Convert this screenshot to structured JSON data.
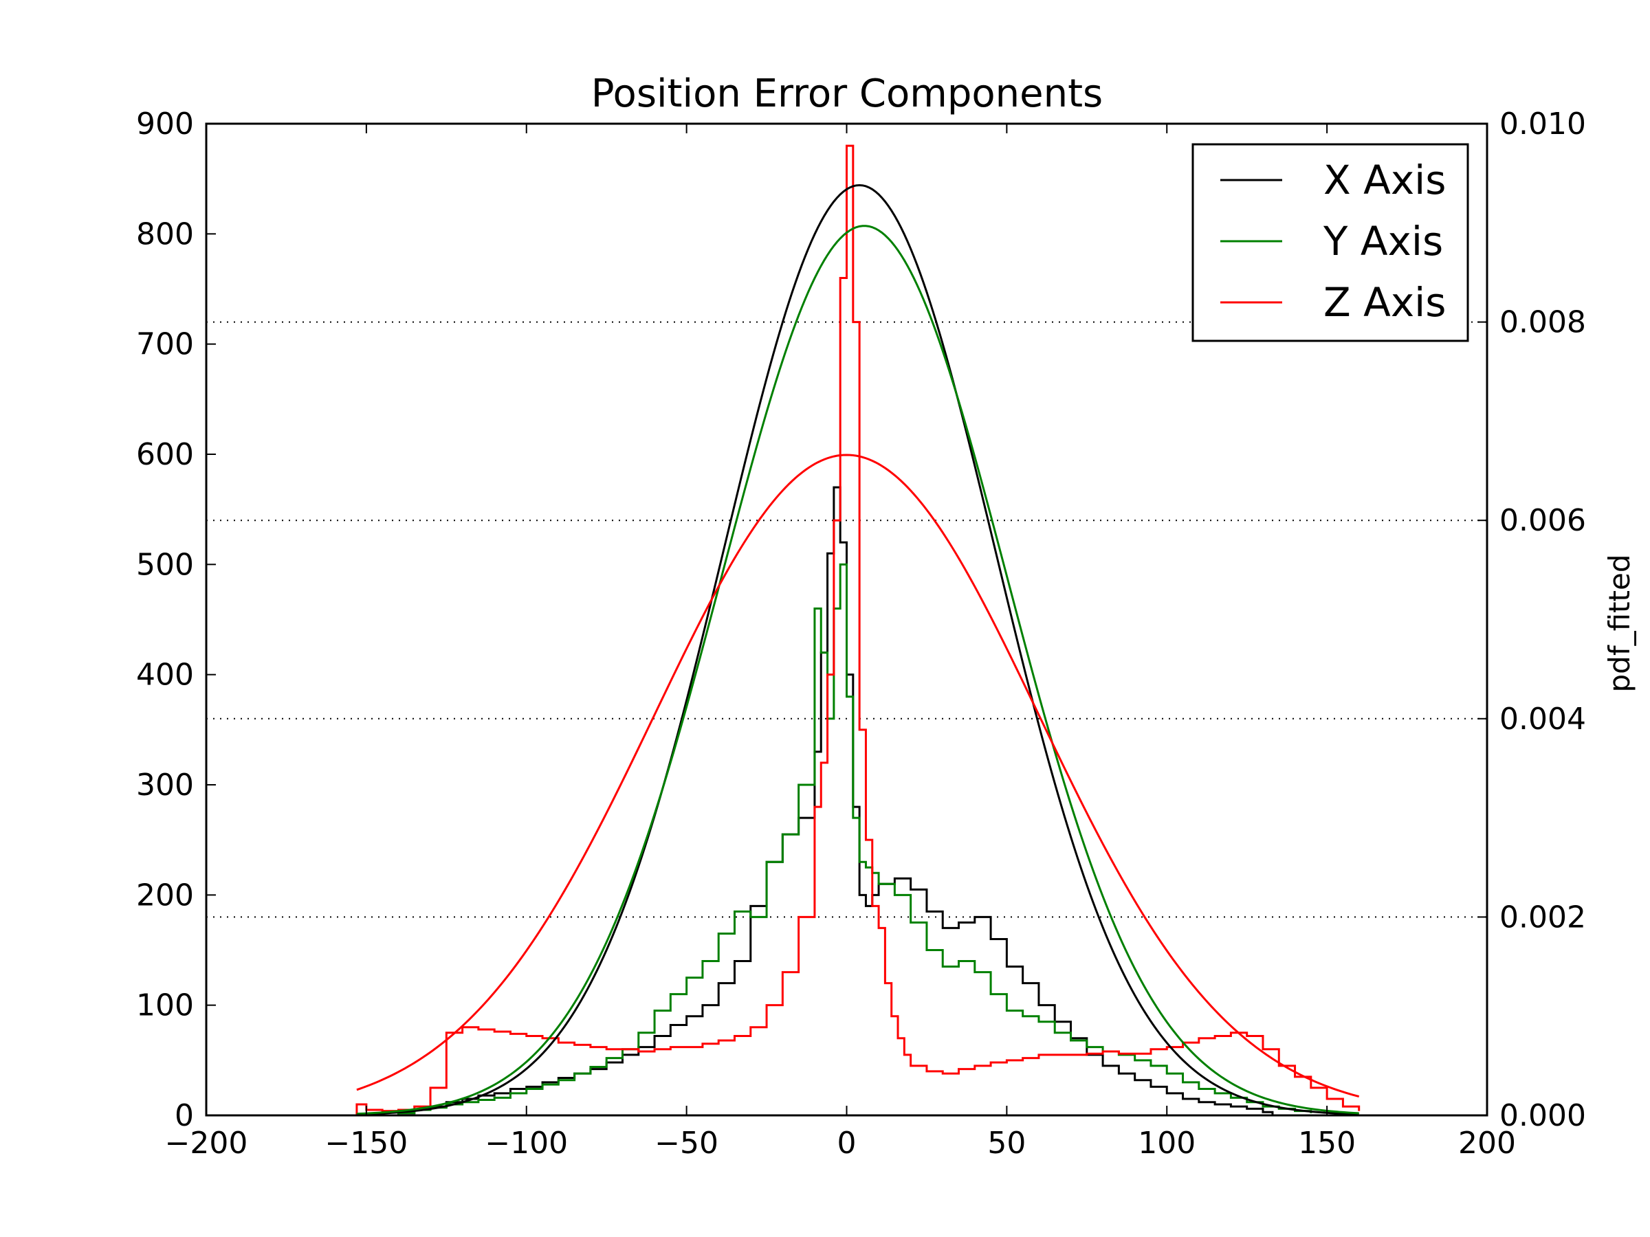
{
  "chart_data": {
    "type": "line",
    "title": "Position Error Components",
    "xlabel": "",
    "ylabel": "",
    "y2label": "pdf_fitted",
    "xlim": [
      -200,
      200
    ],
    "ylim": [
      0,
      900
    ],
    "y2lim": [
      0,
      0.01
    ],
    "x_ticks": [
      "−200",
      "−150",
      "−100",
      "−50",
      "0",
      "50",
      "100",
      "150",
      "200"
    ],
    "y_ticks": [
      "0",
      "100",
      "200",
      "300",
      "400",
      "500",
      "600",
      "700",
      "800",
      "900"
    ],
    "y2_ticks": [
      "0.000",
      "0.002",
      "0.004",
      "0.006",
      "0.008",
      "0.010"
    ],
    "grid": "dotted horizontal lines at right-axis ticks",
    "legend": {
      "placement": "top-right",
      "entries": [
        {
          "label": "X Axis",
          "color": "#000000"
        },
        {
          "label": "Y Axis",
          "color": "#008000"
        },
        {
          "label": "Z Axis",
          "color": "#ff0000"
        }
      ]
    },
    "histograms": [
      {
        "name": "X Axis",
        "color": "#000000",
        "x": [
          -140,
          -135,
          -130,
          -125,
          -120,
          -115,
          -110,
          -105,
          -100,
          -95,
          -90,
          -85,
          -80,
          -75,
          -70,
          -65,
          -60,
          -55,
          -50,
          -45,
          -40,
          -35,
          -30,
          -25,
          -20,
          -15,
          -10,
          -8,
          -6,
          -4,
          -2,
          0,
          2,
          4,
          6,
          8,
          10,
          15,
          20,
          25,
          30,
          35,
          40,
          45,
          50,
          55,
          60,
          65,
          70,
          75,
          80,
          85,
          90,
          95,
          100,
          105,
          110,
          115,
          120,
          125,
          130,
          133
        ],
        "y": [
          2,
          5,
          8,
          12,
          15,
          18,
          20,
          24,
          26,
          30,
          34,
          38,
          42,
          48,
          55,
          62,
          72,
          82,
          90,
          100,
          120,
          140,
          190,
          230,
          255,
          270,
          330,
          420,
          510,
          570,
          520,
          400,
          280,
          200,
          190,
          200,
          210,
          215,
          205,
          185,
          170,
          175,
          180,
          160,
          135,
          120,
          100,
          85,
          70,
          55,
          45,
          38,
          32,
          26,
          20,
          15,
          12,
          10,
          8,
          6,
          3,
          0
        ]
      },
      {
        "name": "Y Axis",
        "color": "#008000",
        "x": [
          -140,
          -135,
          -130,
          -125,
          -120,
          -115,
          -110,
          -105,
          -100,
          -95,
          -90,
          -85,
          -80,
          -75,
          -70,
          -65,
          -60,
          -55,
          -50,
          -45,
          -40,
          -35,
          -30,
          -25,
          -20,
          -15,
          -10,
          -8,
          -6,
          -4,
          -2,
          0,
          2,
          4,
          6,
          8,
          10,
          15,
          20,
          25,
          30,
          35,
          40,
          45,
          50,
          55,
          60,
          65,
          70,
          75,
          80,
          85,
          90,
          95,
          100,
          105,
          110,
          115,
          120,
          125,
          130,
          135,
          140,
          145
        ],
        "y": [
          2,
          5,
          7,
          10,
          12,
          14,
          16,
          20,
          24,
          28,
          32,
          38,
          44,
          52,
          60,
          75,
          95,
          110,
          125,
          140,
          165,
          185,
          180,
          230,
          255,
          300,
          460,
          420,
          360,
          460,
          500,
          380,
          270,
          230,
          225,
          220,
          210,
          200,
          175,
          150,
          135,
          140,
          130,
          110,
          95,
          90,
          85,
          75,
          68,
          62,
          58,
          55,
          50,
          45,
          38,
          30,
          24,
          20,
          16,
          12,
          8,
          6,
          4,
          2
        ]
      },
      {
        "name": "Z Axis",
        "color": "#ff0000",
        "x": [
          -153,
          -150,
          -145,
          -140,
          -135,
          -130,
          -125,
          -120,
          -115,
          -110,
          -105,
          -100,
          -95,
          -90,
          -85,
          -80,
          -75,
          -70,
          -65,
          -60,
          -55,
          -50,
          -45,
          -40,
          -35,
          -30,
          -25,
          -20,
          -15,
          -10,
          -8,
          -6,
          -4,
          -2,
          0,
          2,
          4,
          6,
          8,
          10,
          12,
          14,
          16,
          18,
          20,
          25,
          30,
          35,
          40,
          45,
          50,
          55,
          60,
          65,
          70,
          75,
          80,
          85,
          90,
          95,
          100,
          105,
          110,
          115,
          120,
          125,
          130,
          135,
          140,
          145,
          150,
          155,
          160
        ],
        "y": [
          10,
          5,
          4,
          5,
          8,
          25,
          75,
          80,
          78,
          76,
          74,
          72,
          70,
          66,
          64,
          62,
          60,
          60,
          58,
          60,
          62,
          62,
          65,
          68,
          72,
          80,
          100,
          130,
          180,
          280,
          320,
          400,
          540,
          760,
          880,
          720,
          350,
          250,
          190,
          170,
          120,
          90,
          70,
          55,
          45,
          40,
          38,
          42,
          45,
          48,
          50,
          52,
          55,
          55,
          55,
          56,
          58,
          56,
          56,
          60,
          62,
          66,
          70,
          72,
          75,
          72,
          60,
          45,
          35,
          25,
          15,
          8,
          4
        ]
      }
    ],
    "fitted_pdfs": [
      {
        "name": "X Axis",
        "color": "#000000",
        "mean": 4,
        "std": 42.5,
        "peak": 0.00938
      },
      {
        "name": "Y Axis",
        "color": "#008000",
        "mean": 5.5,
        "std": 44.5,
        "peak": 0.00897
      },
      {
        "name": "Z Axis",
        "color": "#ff0000",
        "mean": 0,
        "std": 60,
        "peak": 0.00666,
        "x_range": [
          -153,
          160
        ]
      }
    ]
  }
}
